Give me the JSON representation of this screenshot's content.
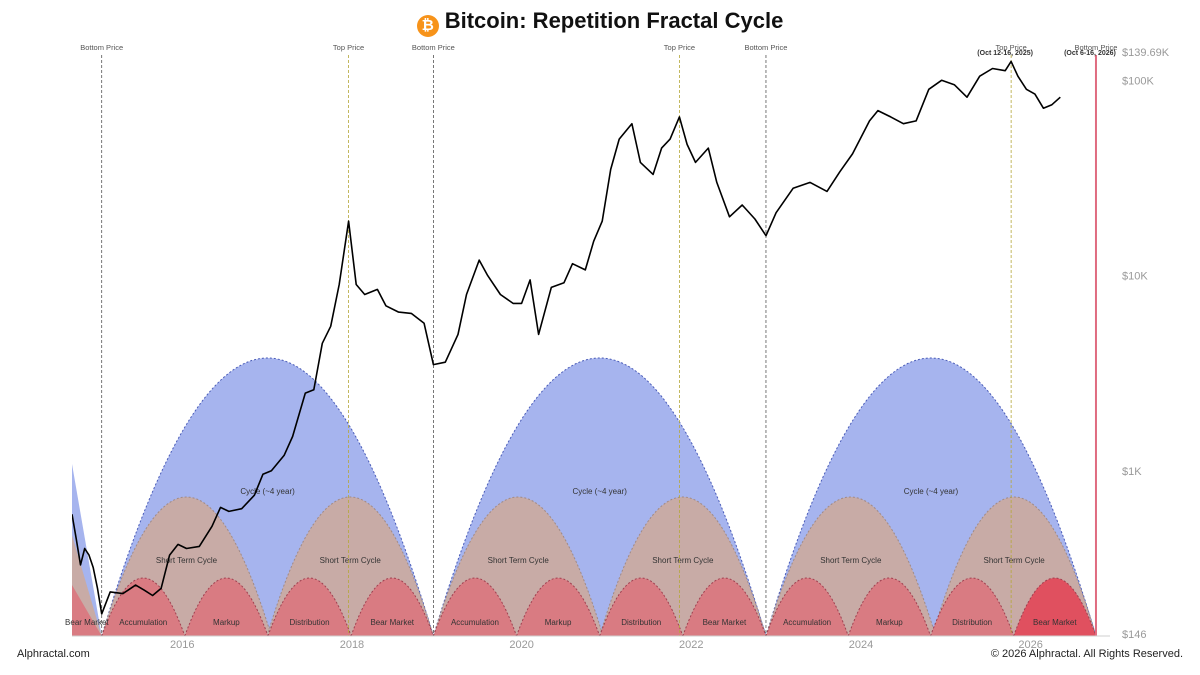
{
  "title": "Bitcoin: Repetition Fractal Cycle",
  "logo_icon": "bitcoin-icon",
  "footer": {
    "source": "Alphractal.com",
    "copyright": "© 2026 Alphractal. All Rights Reserved."
  },
  "colors": {
    "cycle": "#a6b4ee",
    "short_cycle": "#c8aba6",
    "phase": "#d97b82",
    "bear_last": "#e0505f",
    "price": "#000000",
    "final_line": "#e06c80"
  },
  "chart_data": {
    "type": "line",
    "title": "Bitcoin: Repetition Fractal Cycle",
    "y_scale": "log",
    "ylim": [
      146,
      139690
    ],
    "y_tick_labels": [
      "$139.69K",
      "$100K",
      "$10K",
      "$1K",
      "$146"
    ],
    "y_ticks": [
      139690,
      100000,
      10000,
      1000,
      146
    ],
    "xlim": [
      2014.7,
      2026.9
    ],
    "x_ticks": [
      2016,
      2018,
      2020,
      2022,
      2024,
      2026
    ],
    "x_tick_labels": [
      "2016",
      "2018",
      "2020",
      "2022",
      "2024",
      "2026"
    ],
    "markers": [
      {
        "x": 2015.05,
        "label": "Bottom Price",
        "sub": "",
        "kind": "bottom"
      },
      {
        "x": 2017.96,
        "label": "Top Price",
        "sub": "",
        "kind": "top"
      },
      {
        "x": 2018.96,
        "label": "Bottom Price",
        "sub": "",
        "kind": "bottom"
      },
      {
        "x": 2021.86,
        "label": "Top Price",
        "sub": "",
        "kind": "top"
      },
      {
        "x": 2022.88,
        "label": "Bottom Price",
        "sub": "",
        "kind": "bottom"
      },
      {
        "x": 2025.77,
        "label": "Top Price",
        "sub": "(Oct 12-16, 2025)",
        "kind": "top"
      },
      {
        "x": 2026.77,
        "label": "Bottom Price",
        "sub": "(Oct 6-16, 2026)",
        "kind": "final"
      }
    ],
    "cycles": [
      {
        "start": 2015.05,
        "end": 2018.96,
        "label": "Cycle (~4 year)"
      },
      {
        "start": 2018.96,
        "end": 2022.88,
        "label": "Cycle (~4 year)"
      },
      {
        "start": 2022.88,
        "end": 2026.77,
        "label": "Cycle (~4 year)"
      }
    ],
    "short_cycles": [
      {
        "start": 2015.05,
        "end": 2017.05,
        "label": "Short Term Cycle"
      },
      {
        "start": 2017.0,
        "end": 2018.96,
        "label": "Short Term Cycle"
      },
      {
        "start": 2018.96,
        "end": 2020.96,
        "label": "Short Term Cycle"
      },
      {
        "start": 2020.92,
        "end": 2022.88,
        "label": "Short Term Cycle"
      },
      {
        "start": 2022.88,
        "end": 2024.88,
        "label": "Short Term Cycle"
      },
      {
        "start": 2024.84,
        "end": 2026.77,
        "label": "Short Term Cycle"
      }
    ],
    "phases": [
      {
        "start": 2014.7,
        "end": 2015.05,
        "label": "Bear Market"
      },
      {
        "start": 2015.05,
        "end": 2016.03,
        "label": "Accumulation"
      },
      {
        "start": 2016.03,
        "end": 2017.01,
        "label": "Markup"
      },
      {
        "start": 2017.01,
        "end": 2017.99,
        "label": "Distribution"
      },
      {
        "start": 2017.99,
        "end": 2018.96,
        "label": "Bear Market"
      },
      {
        "start": 2018.96,
        "end": 2019.94,
        "label": "Accumulation"
      },
      {
        "start": 2019.94,
        "end": 2020.92,
        "label": "Markup"
      },
      {
        "start": 2020.92,
        "end": 2021.9,
        "label": "Distribution"
      },
      {
        "start": 2021.9,
        "end": 2022.88,
        "label": "Bear Market"
      },
      {
        "start": 2022.88,
        "end": 2023.85,
        "label": "Accumulation"
      },
      {
        "start": 2023.85,
        "end": 2024.82,
        "label": "Markup"
      },
      {
        "start": 2024.82,
        "end": 2025.8,
        "label": "Distribution"
      },
      {
        "start": 2025.8,
        "end": 2026.77,
        "label": "Bear Market"
      }
    ],
    "prefix_fill": {
      "start": 2014.7,
      "end": 2015.05
    },
    "series": [
      {
        "points": [
          [
            2014.7,
            600
          ],
          [
            2014.75,
            450
          ],
          [
            2014.8,
            330
          ],
          [
            2014.85,
            400
          ],
          [
            2014.9,
            370
          ],
          [
            2014.95,
            320
          ],
          [
            2015.0,
            250
          ],
          [
            2015.05,
            185
          ],
          [
            2015.15,
            240
          ],
          [
            2015.3,
            235
          ],
          [
            2015.45,
            260
          ],
          [
            2015.55,
            245
          ],
          [
            2015.65,
            230
          ],
          [
            2015.75,
            250
          ],
          [
            2015.85,
            370
          ],
          [
            2015.95,
            420
          ],
          [
            2016.05,
            400
          ],
          [
            2016.2,
            410
          ],
          [
            2016.35,
            520
          ],
          [
            2016.45,
            650
          ],
          [
            2016.55,
            620
          ],
          [
            2016.7,
            640
          ],
          [
            2016.85,
            750
          ],
          [
            2016.95,
            960
          ],
          [
            2017.05,
            1000
          ],
          [
            2017.2,
            1200
          ],
          [
            2017.3,
            1500
          ],
          [
            2017.45,
            2500
          ],
          [
            2017.55,
            2600
          ],
          [
            2017.65,
            4500
          ],
          [
            2017.75,
            5500
          ],
          [
            2017.85,
            9000
          ],
          [
            2017.96,
            19000
          ],
          [
            2018.05,
            9000
          ],
          [
            2018.15,
            8000
          ],
          [
            2018.3,
            8500
          ],
          [
            2018.4,
            7000
          ],
          [
            2018.55,
            6500
          ],
          [
            2018.7,
            6400
          ],
          [
            2018.85,
            5700
          ],
          [
            2018.96,
            3500
          ],
          [
            2019.1,
            3600
          ],
          [
            2019.25,
            5000
          ],
          [
            2019.35,
            8000
          ],
          [
            2019.5,
            12000
          ],
          [
            2019.6,
            10000
          ],
          [
            2019.75,
            8000
          ],
          [
            2019.9,
            7200
          ],
          [
            2020.0,
            7200
          ],
          [
            2020.1,
            9500
          ],
          [
            2020.2,
            5000
          ],
          [
            2020.35,
            8700
          ],
          [
            2020.5,
            9200
          ],
          [
            2020.6,
            11500
          ],
          [
            2020.75,
            10700
          ],
          [
            2020.85,
            15000
          ],
          [
            2020.95,
            19000
          ],
          [
            2021.05,
            35000
          ],
          [
            2021.15,
            50000
          ],
          [
            2021.3,
            60000
          ],
          [
            2021.4,
            38000
          ],
          [
            2021.55,
            33000
          ],
          [
            2021.65,
            45000
          ],
          [
            2021.75,
            50000
          ],
          [
            2021.86,
            65000
          ],
          [
            2021.95,
            47000
          ],
          [
            2022.05,
            38000
          ],
          [
            2022.2,
            45000
          ],
          [
            2022.3,
            30000
          ],
          [
            2022.45,
            20000
          ],
          [
            2022.6,
            23000
          ],
          [
            2022.75,
            19500
          ],
          [
            2022.88,
            16000
          ],
          [
            2023.0,
            21000
          ],
          [
            2023.2,
            28000
          ],
          [
            2023.4,
            30000
          ],
          [
            2023.6,
            27000
          ],
          [
            2023.75,
            34000
          ],
          [
            2023.9,
            42000
          ],
          [
            2024.1,
            62000
          ],
          [
            2024.2,
            70000
          ],
          [
            2024.35,
            65000
          ],
          [
            2024.5,
            60000
          ],
          [
            2024.65,
            62000
          ],
          [
            2024.8,
            90000
          ],
          [
            2024.95,
            100000
          ],
          [
            2025.1,
            95000
          ],
          [
            2025.25,
            82000
          ],
          [
            2025.4,
            105000
          ],
          [
            2025.55,
            115000
          ],
          [
            2025.7,
            112000
          ],
          [
            2025.77,
            125000
          ],
          [
            2025.85,
            105000
          ],
          [
            2025.95,
            90000
          ],
          [
            2026.05,
            85000
          ],
          [
            2026.15,
            72000
          ],
          [
            2026.25,
            75000
          ],
          [
            2026.35,
            82000
          ]
        ]
      }
    ]
  }
}
